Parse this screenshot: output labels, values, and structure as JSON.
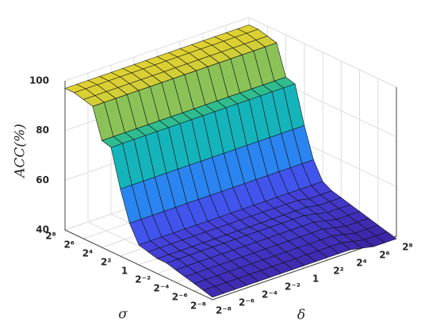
{
  "chart_data": {
    "type": "surface",
    "xlabel": "δ",
    "ylabel": "σ",
    "zlabel": "ACC(%)",
    "colormap": "parula",
    "grid": true,
    "xscale": "log",
    "yscale": "log",
    "x": [
      0.00390625,
      0.0078125,
      0.015625,
      0.03125,
      0.0625,
      0.125,
      0.25,
      0.5,
      1,
      2,
      4,
      8,
      16,
      32,
      64,
      128,
      256
    ],
    "y": [
      0.00390625,
      0.0078125,
      0.015625,
      0.03125,
      0.0625,
      0.125,
      0.25,
      0.5,
      1,
      2,
      4,
      8,
      16,
      32,
      64,
      128,
      256
    ],
    "z": [
      [
        41,
        41,
        41,
        41,
        41,
        41,
        41,
        41,
        41,
        41,
        41,
        41,
        41,
        40,
        39,
        39,
        39
      ],
      [
        42,
        42,
        42,
        42,
        42,
        42,
        42,
        42,
        42,
        42,
        42,
        42,
        42,
        41,
        40,
        40,
        40
      ],
      [
        43,
        43,
        43,
        43,
        43,
        43,
        43,
        43,
        43,
        43,
        43,
        43,
        43,
        42,
        41,
        41,
        41
      ],
      [
        44,
        44,
        44,
        44,
        44,
        44,
        44,
        44,
        44,
        44,
        44,
        44,
        44,
        43,
        42,
        42,
        42
      ],
      [
        45,
        45,
        45,
        45,
        45,
        45,
        45,
        45,
        45,
        45,
        45,
        45,
        45,
        44,
        43,
        43,
        43
      ],
      [
        46,
        46,
        46,
        46,
        46,
        46,
        46,
        46,
        46,
        46,
        46,
        46,
        46,
        45,
        44,
        44,
        44
      ],
      [
        46,
        46,
        46,
        46,
        46,
        46,
        46,
        46,
        46,
        46,
        46,
        46,
        46,
        46,
        45,
        45,
        45
      ],
      [
        47,
        47,
        47,
        47,
        47,
        47,
        47,
        47,
        47,
        47,
        47,
        47,
        47,
        47,
        46,
        46,
        46
      ],
      [
        48,
        48,
        48,
        48,
        48,
        48,
        48,
        48,
        48,
        48,
        48,
        48,
        48,
        48,
        48,
        48,
        48
      ],
      [
        55,
        55,
        55,
        55,
        55,
        55,
        55,
        55,
        55,
        55,
        55,
        55,
        55,
        55,
        55,
        55,
        55
      ],
      [
        67,
        67,
        67,
        67,
        67,
        67,
        67,
        67,
        67,
        67,
        67,
        67,
        67,
        67,
        67,
        67,
        67
      ],
      [
        82,
        82,
        82,
        82,
        82,
        82,
        82,
        82,
        82,
        82,
        82,
        82,
        82,
        82,
        82,
        82,
        82
      ],
      [
        83,
        83,
        83,
        83,
        83,
        83,
        83,
        83,
        83,
        83,
        83,
        83,
        83,
        83,
        83,
        83,
        83
      ],
      [
        95,
        95,
        95,
        95,
        95,
        95,
        95,
        95,
        95,
        95,
        95,
        95,
        95,
        95,
        95,
        95,
        95
      ],
      [
        96,
        96,
        96,
        96,
        96,
        96,
        96,
        96,
        96,
        96,
        96,
        96,
        96,
        96,
        96,
        96,
        96
      ],
      [
        97,
        97,
        97,
        97,
        97,
        97,
        97,
        97,
        97,
        97,
        97,
        97,
        97,
        97,
        97,
        97,
        97
      ],
      [
        97,
        97,
        97,
        97,
        97,
        97,
        97,
        97,
        97,
        97,
        97,
        97,
        97,
        97,
        97,
        97,
        97
      ]
    ],
    "xlim": [
      0.00390625,
      256
    ],
    "ylim": [
      0.00390625,
      256
    ],
    "zlim": [
      40,
      100
    ],
    "xticks": [
      {
        "value": 0.00390625,
        "label": "2⁻⁸"
      },
      {
        "value": 0.015625,
        "label": "2⁻⁶"
      },
      {
        "value": 0.0625,
        "label": "2⁻⁴"
      },
      {
        "value": 0.25,
        "label": "2⁻²"
      },
      1,
      {
        "value": 4,
        "label": "2²"
      },
      {
        "value": 16,
        "label": "2⁴"
      },
      {
        "value": 64,
        "label": "2⁶"
      },
      {
        "value": 256,
        "label": "2⁸"
      }
    ],
    "yticks": [
      {
        "value": 0.00390625,
        "label": "2⁻⁸"
      },
      {
        "value": 0.015625,
        "label": "2⁻⁶"
      },
      {
        "value": 0.0625,
        "label": "2⁻⁴"
      },
      {
        "value": 0.25,
        "label": "2⁻²"
      },
      1,
      {
        "value": 4,
        "label": "2²"
      },
      {
        "value": 16,
        "label": "2⁴"
      },
      {
        "value": 64,
        "label": "2⁶"
      },
      {
        "value": 256,
        "label": "2⁸"
      }
    ],
    "zticks": [
      40,
      60,
      80,
      100
    ]
  }
}
